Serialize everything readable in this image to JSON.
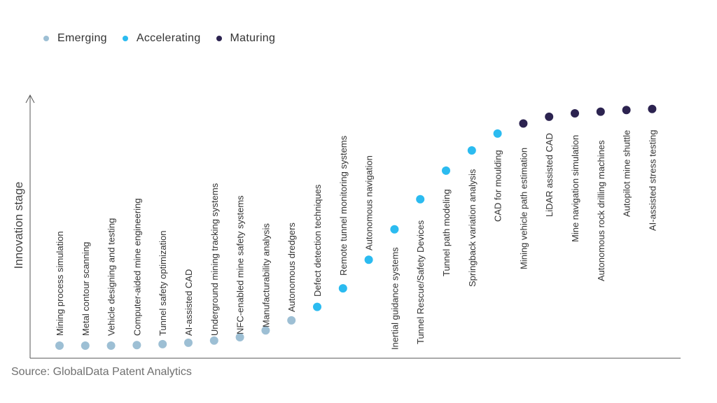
{
  "legend": [
    {
      "key": "emerging",
      "label": "Emerging",
      "color": "#9dbfd4"
    },
    {
      "key": "accelerating",
      "label": "Accelerating",
      "color": "#2bbbf0"
    },
    {
      "key": "maturing",
      "label": "Maturing",
      "color": "#2c2350"
    }
  ],
  "source": "Source: GlobalData Patent Analytics",
  "chart_data": {
    "type": "scatter",
    "title": "",
    "xlabel": "",
    "ylabel": "Innovation stage",
    "ylim": [
      0,
      100
    ],
    "grid": false,
    "legend_position": "top-left",
    "points": [
      {
        "label": "Mining process simulation",
        "stage": "emerging",
        "y": 0
      },
      {
        "label": "Metal contour scanning",
        "stage": "emerging",
        "y": 0
      },
      {
        "label": "Vehicle designing and testing",
        "stage": "emerging",
        "y": 0
      },
      {
        "label": "Computer-aided mine engineering",
        "stage": "emerging",
        "y": 0.2
      },
      {
        "label": "Tunnel safety optimization",
        "stage": "emerging",
        "y": 0.6
      },
      {
        "label": "AI-assisted CAD",
        "stage": "emerging",
        "y": 1.2
      },
      {
        "label": "Underground mining tracking systems",
        "stage": "emerging",
        "y": 2.1
      },
      {
        "label": "NFC-enabled mine safety systems",
        "stage": "emerging",
        "y": 3.5
      },
      {
        "label": "Manufacturability analysis",
        "stage": "emerging",
        "y": 6.3
      },
      {
        "label": "Autonomous dredgers",
        "stage": "emerging",
        "y": 10.5
      },
      {
        "label": "Defect detection techniques",
        "stage": "accelerating",
        "y": 16.1
      },
      {
        "label": "Remote tunnel monitoring systems",
        "stage": "accelerating",
        "y": 23.8
      },
      {
        "label": "Autonomous navigation",
        "stage": "accelerating",
        "y": 35.7
      },
      {
        "label": "Inertial guidance systems",
        "stage": "accelerating",
        "y": 48.3
      },
      {
        "label": "Tunnel Rescue/Safety Devices",
        "stage": "accelerating",
        "y": 60.8
      },
      {
        "label": "Tunnel path modeling",
        "stage": "accelerating",
        "y": 72.7
      },
      {
        "label": "Springback variation analysis",
        "stage": "accelerating",
        "y": 81.1
      },
      {
        "label": "CAD for moulding",
        "stage": "accelerating",
        "y": 88.1
      },
      {
        "label": "Mining vehicle path estimation",
        "stage": "maturing",
        "y": 92.3
      },
      {
        "label": "LiDAR assisted CAD",
        "stage": "maturing",
        "y": 95.1
      },
      {
        "label": "Mine navigation simulation",
        "stage": "maturing",
        "y": 96.5
      },
      {
        "label": "Autonomous rock drilling machines",
        "stage": "maturing",
        "y": 97.2
      },
      {
        "label": "Autopilot mine shuttle",
        "stage": "maturing",
        "y": 97.9
      },
      {
        "label": "AI-assisted stress testing",
        "stage": "maturing",
        "y": 98.3
      }
    ]
  }
}
